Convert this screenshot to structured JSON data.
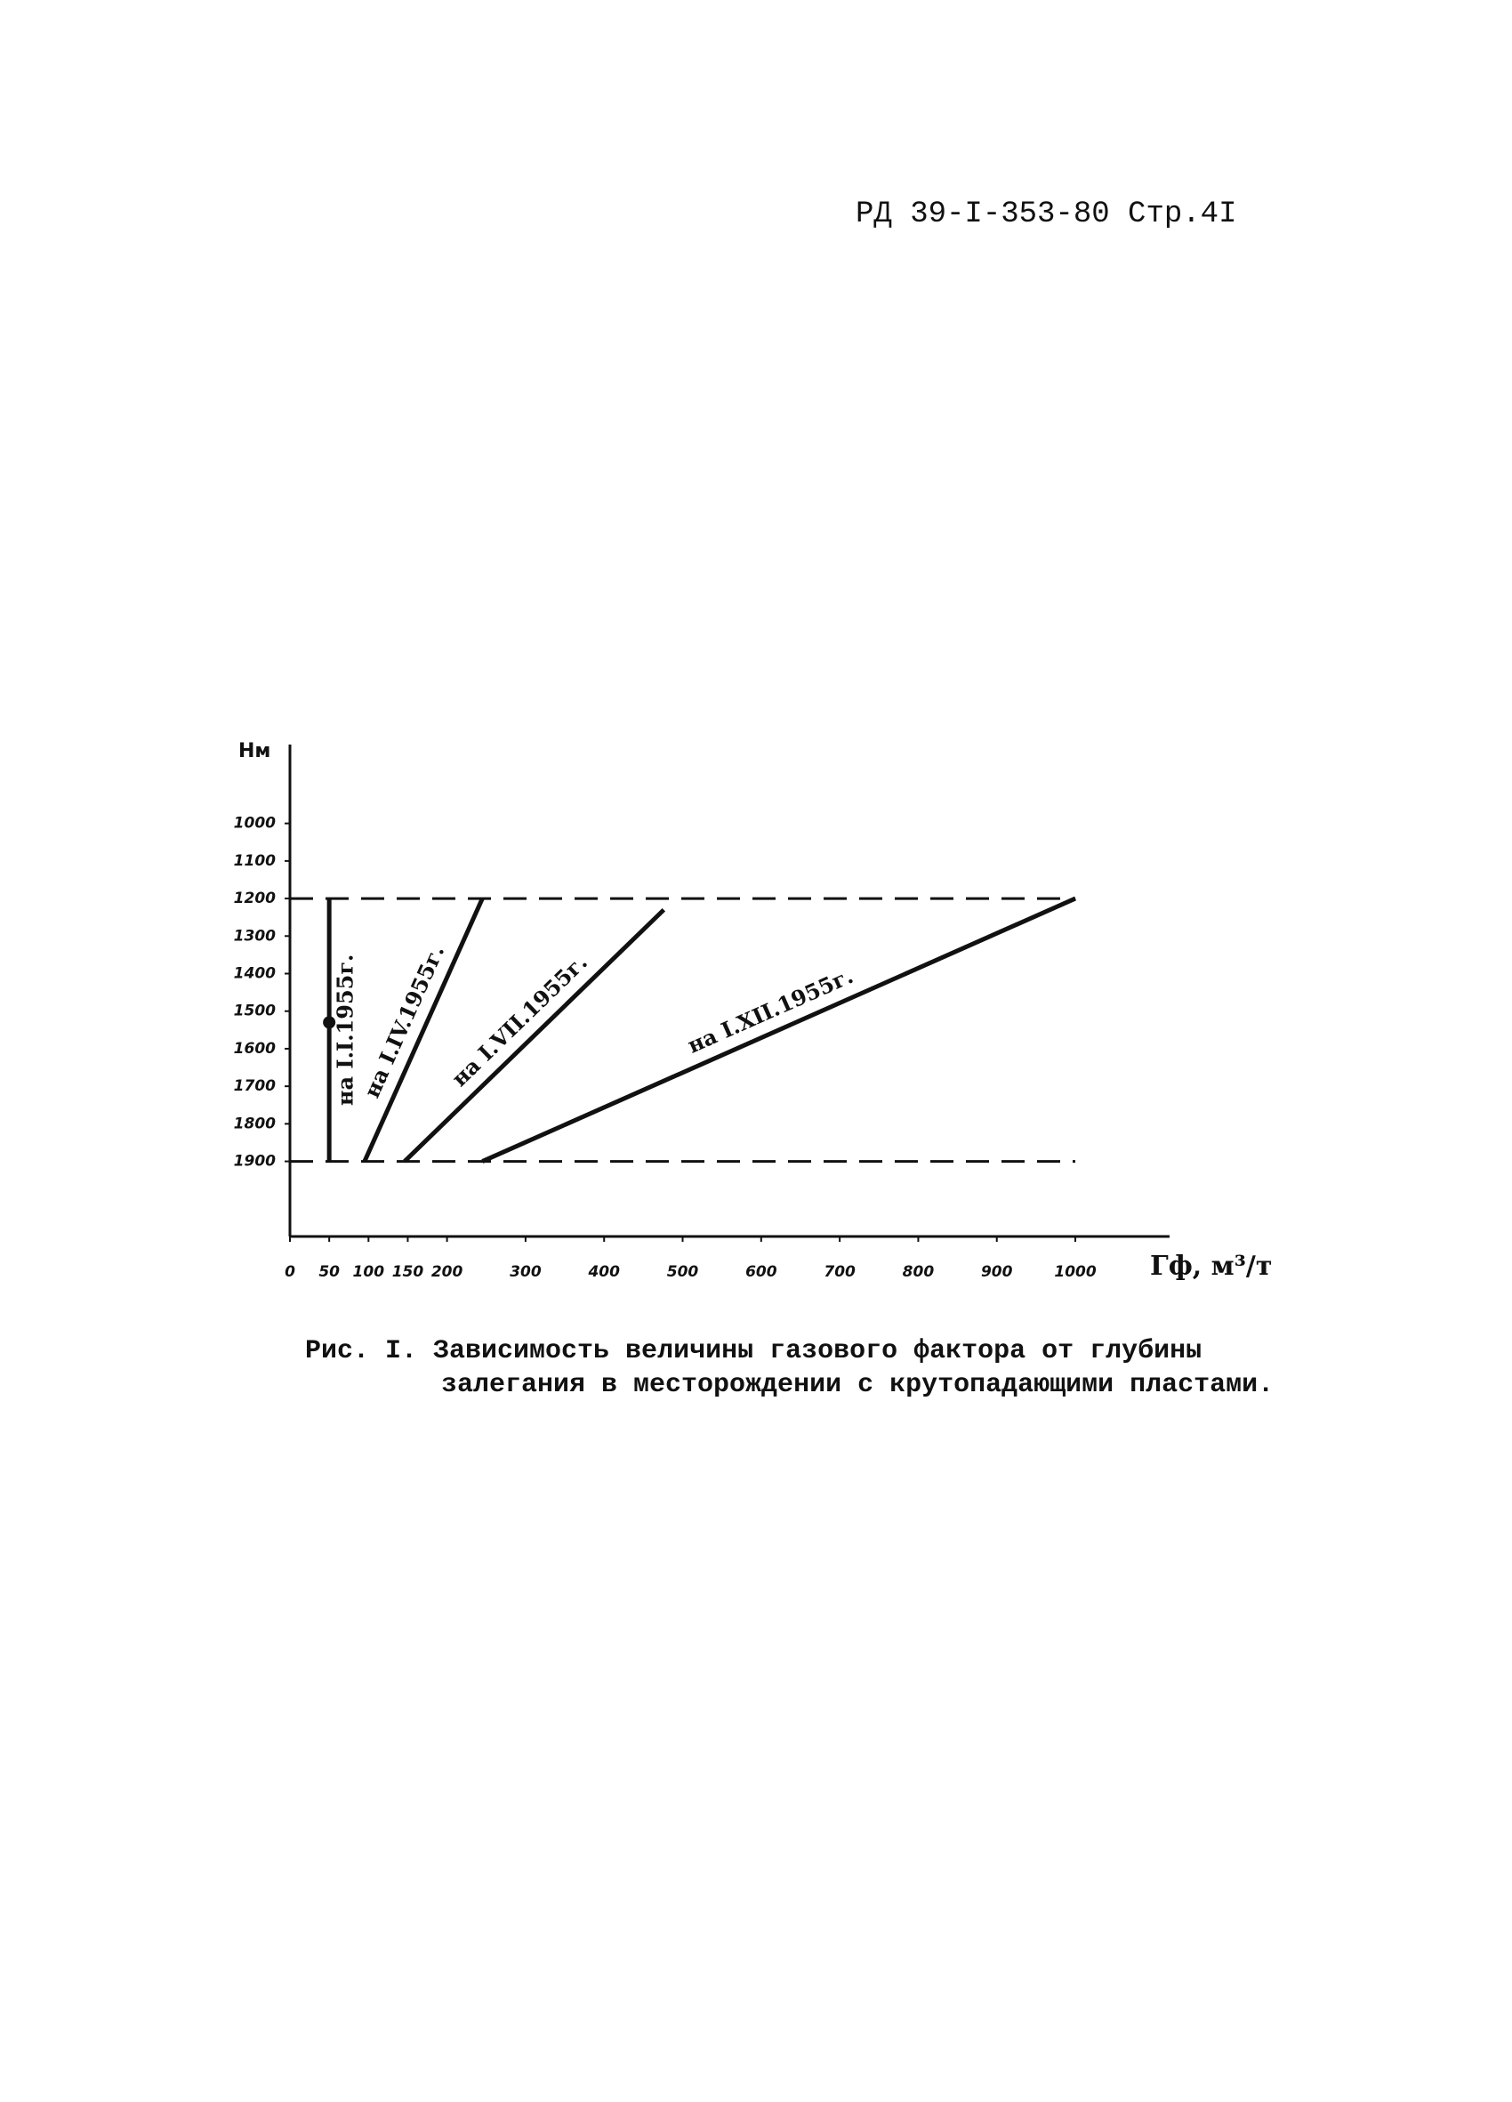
{
  "header": "РД 39-I-353-80 Стр.4I",
  "chart_data": {
    "type": "line",
    "y_label": "Нм",
    "x_label": "Гф, м³/т",
    "xlim": [
      0,
      1120
    ],
    "xticks": [
      0,
      50,
      100,
      150,
      200,
      300,
      400,
      500,
      600,
      700,
      800,
      900,
      1000
    ],
    "ylim": [
      2100,
      790
    ],
    "yticks": [
      1000,
      1100,
      1200,
      1300,
      1400,
      1500,
      1600,
      1700,
      1800,
      1900
    ],
    "hlines": [
      1200,
      1900
    ],
    "hline_xmax": 1000,
    "color": "#111111",
    "series": [
      {
        "name": "на I.I.1955г.",
        "x": [
          50,
          50
        ],
        "values": [
          1900,
          1200
        ]
      },
      {
        "name": "на I.IV.1955г.",
        "x": [
          95,
          245
        ],
        "values": [
          1900,
          1200
        ]
      },
      {
        "name": "на I.VII.1955г.",
        "x": [
          146,
          476
        ],
        "values": [
          1900,
          1230
        ]
      },
      {
        "name": "на I.XII.1955г.",
        "x": [
          245,
          1000
        ],
        "values": [
          1900,
          1200
        ]
      }
    ],
    "marker": {
      "x": 50,
      "value": 1530
    }
  },
  "caption": [
    "Рис. I. Зависимость величины газового фактора от глубины",
    "залегания в месторождении с крутопадающими пластами."
  ]
}
